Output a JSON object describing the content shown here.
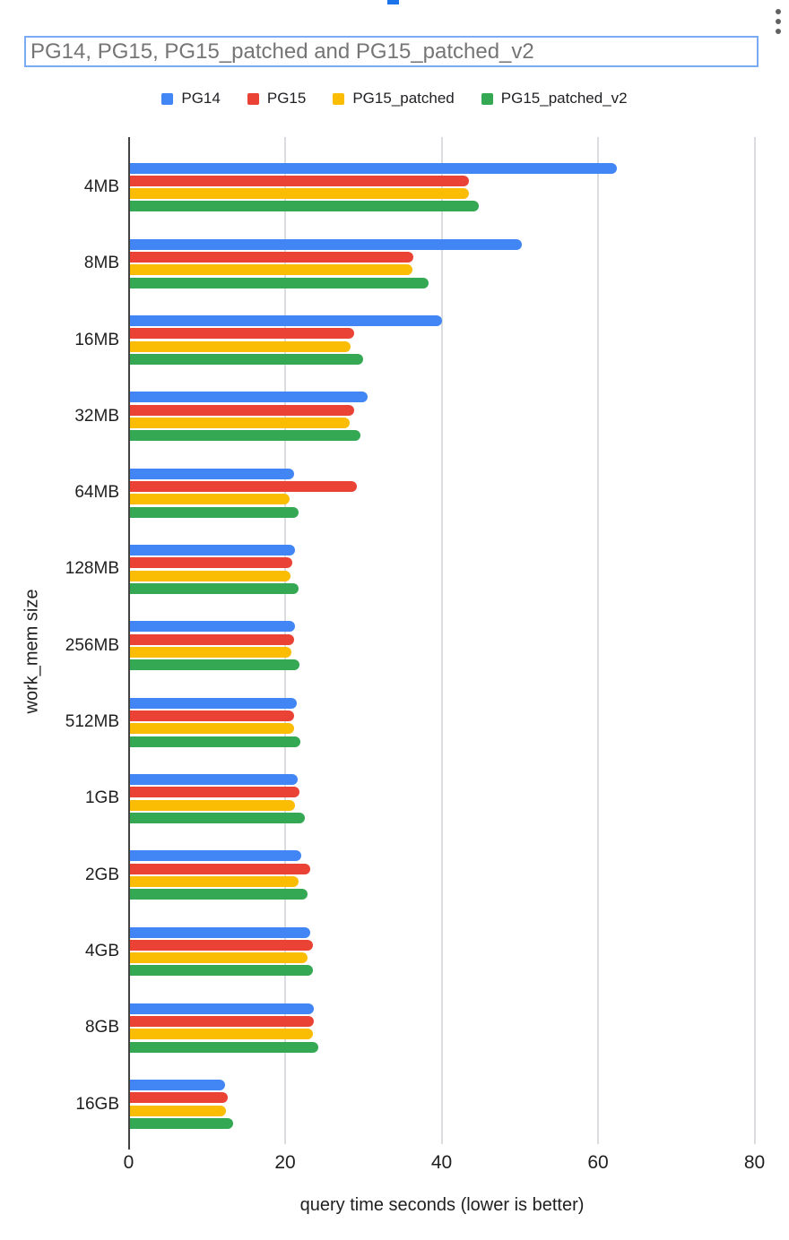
{
  "header": {
    "title": "PG14, PG15, PG15_patched and PG15_patched_v2",
    "title_color": "#757575",
    "title_box_border_color": "#7baaf7",
    "selection_handle_color": "#1a73e8",
    "more_options_icon": "kebab-vertical-icon"
  },
  "legend": {
    "position": "top",
    "items": [
      {
        "label": "PG14",
        "color": "#4285f4"
      },
      {
        "label": "PG15",
        "color": "#ea4335"
      },
      {
        "label": "PG15_patched",
        "color": "#fbbc04"
      },
      {
        "label": "PG15_patched_v2",
        "color": "#34a853"
      }
    ]
  },
  "chart_data": {
    "type": "bar",
    "orientation": "horizontal",
    "title": "PG14, PG15, PG15_patched and PG15_patched_v2",
    "xlabel": "query time seconds (lower is better)",
    "ylabel": "work_mem size",
    "grid": true,
    "legend_position": "top",
    "xlim": [
      0,
      84
    ],
    "xticks": [
      0,
      20,
      40,
      60,
      80
    ],
    "categories": [
      "4MB",
      "8MB",
      "16MB",
      "32MB",
      "64MB",
      "128MB",
      "256MB",
      "512MB",
      "1GB",
      "2GB",
      "4GB",
      "8GB",
      "16GB"
    ],
    "series": [
      {
        "name": "PG14",
        "color": "#4285f4",
        "values": [
          62.3,
          50.1,
          39.9,
          30.4,
          21.0,
          21.1,
          21.1,
          21.4,
          21.5,
          22.0,
          23.1,
          23.6,
          12.2
        ]
      },
      {
        "name": "PG15",
        "color": "#ea4335",
        "values": [
          43.4,
          36.3,
          28.7,
          28.7,
          29.0,
          20.8,
          21.0,
          21.0,
          21.7,
          23.1,
          23.4,
          23.6,
          12.6
        ]
      },
      {
        "name": "PG15_patched",
        "color": "#fbbc04",
        "values": [
          43.4,
          36.2,
          28.3,
          28.1,
          20.5,
          20.6,
          20.7,
          21.0,
          21.2,
          21.6,
          22.8,
          23.4,
          12.3
        ]
      },
      {
        "name": "PG15_patched_v2",
        "color": "#34a853",
        "values": [
          44.6,
          38.2,
          29.8,
          29.5,
          21.6,
          21.6,
          21.7,
          21.8,
          22.4,
          22.8,
          23.4,
          24.1,
          13.2
        ]
      }
    ]
  }
}
